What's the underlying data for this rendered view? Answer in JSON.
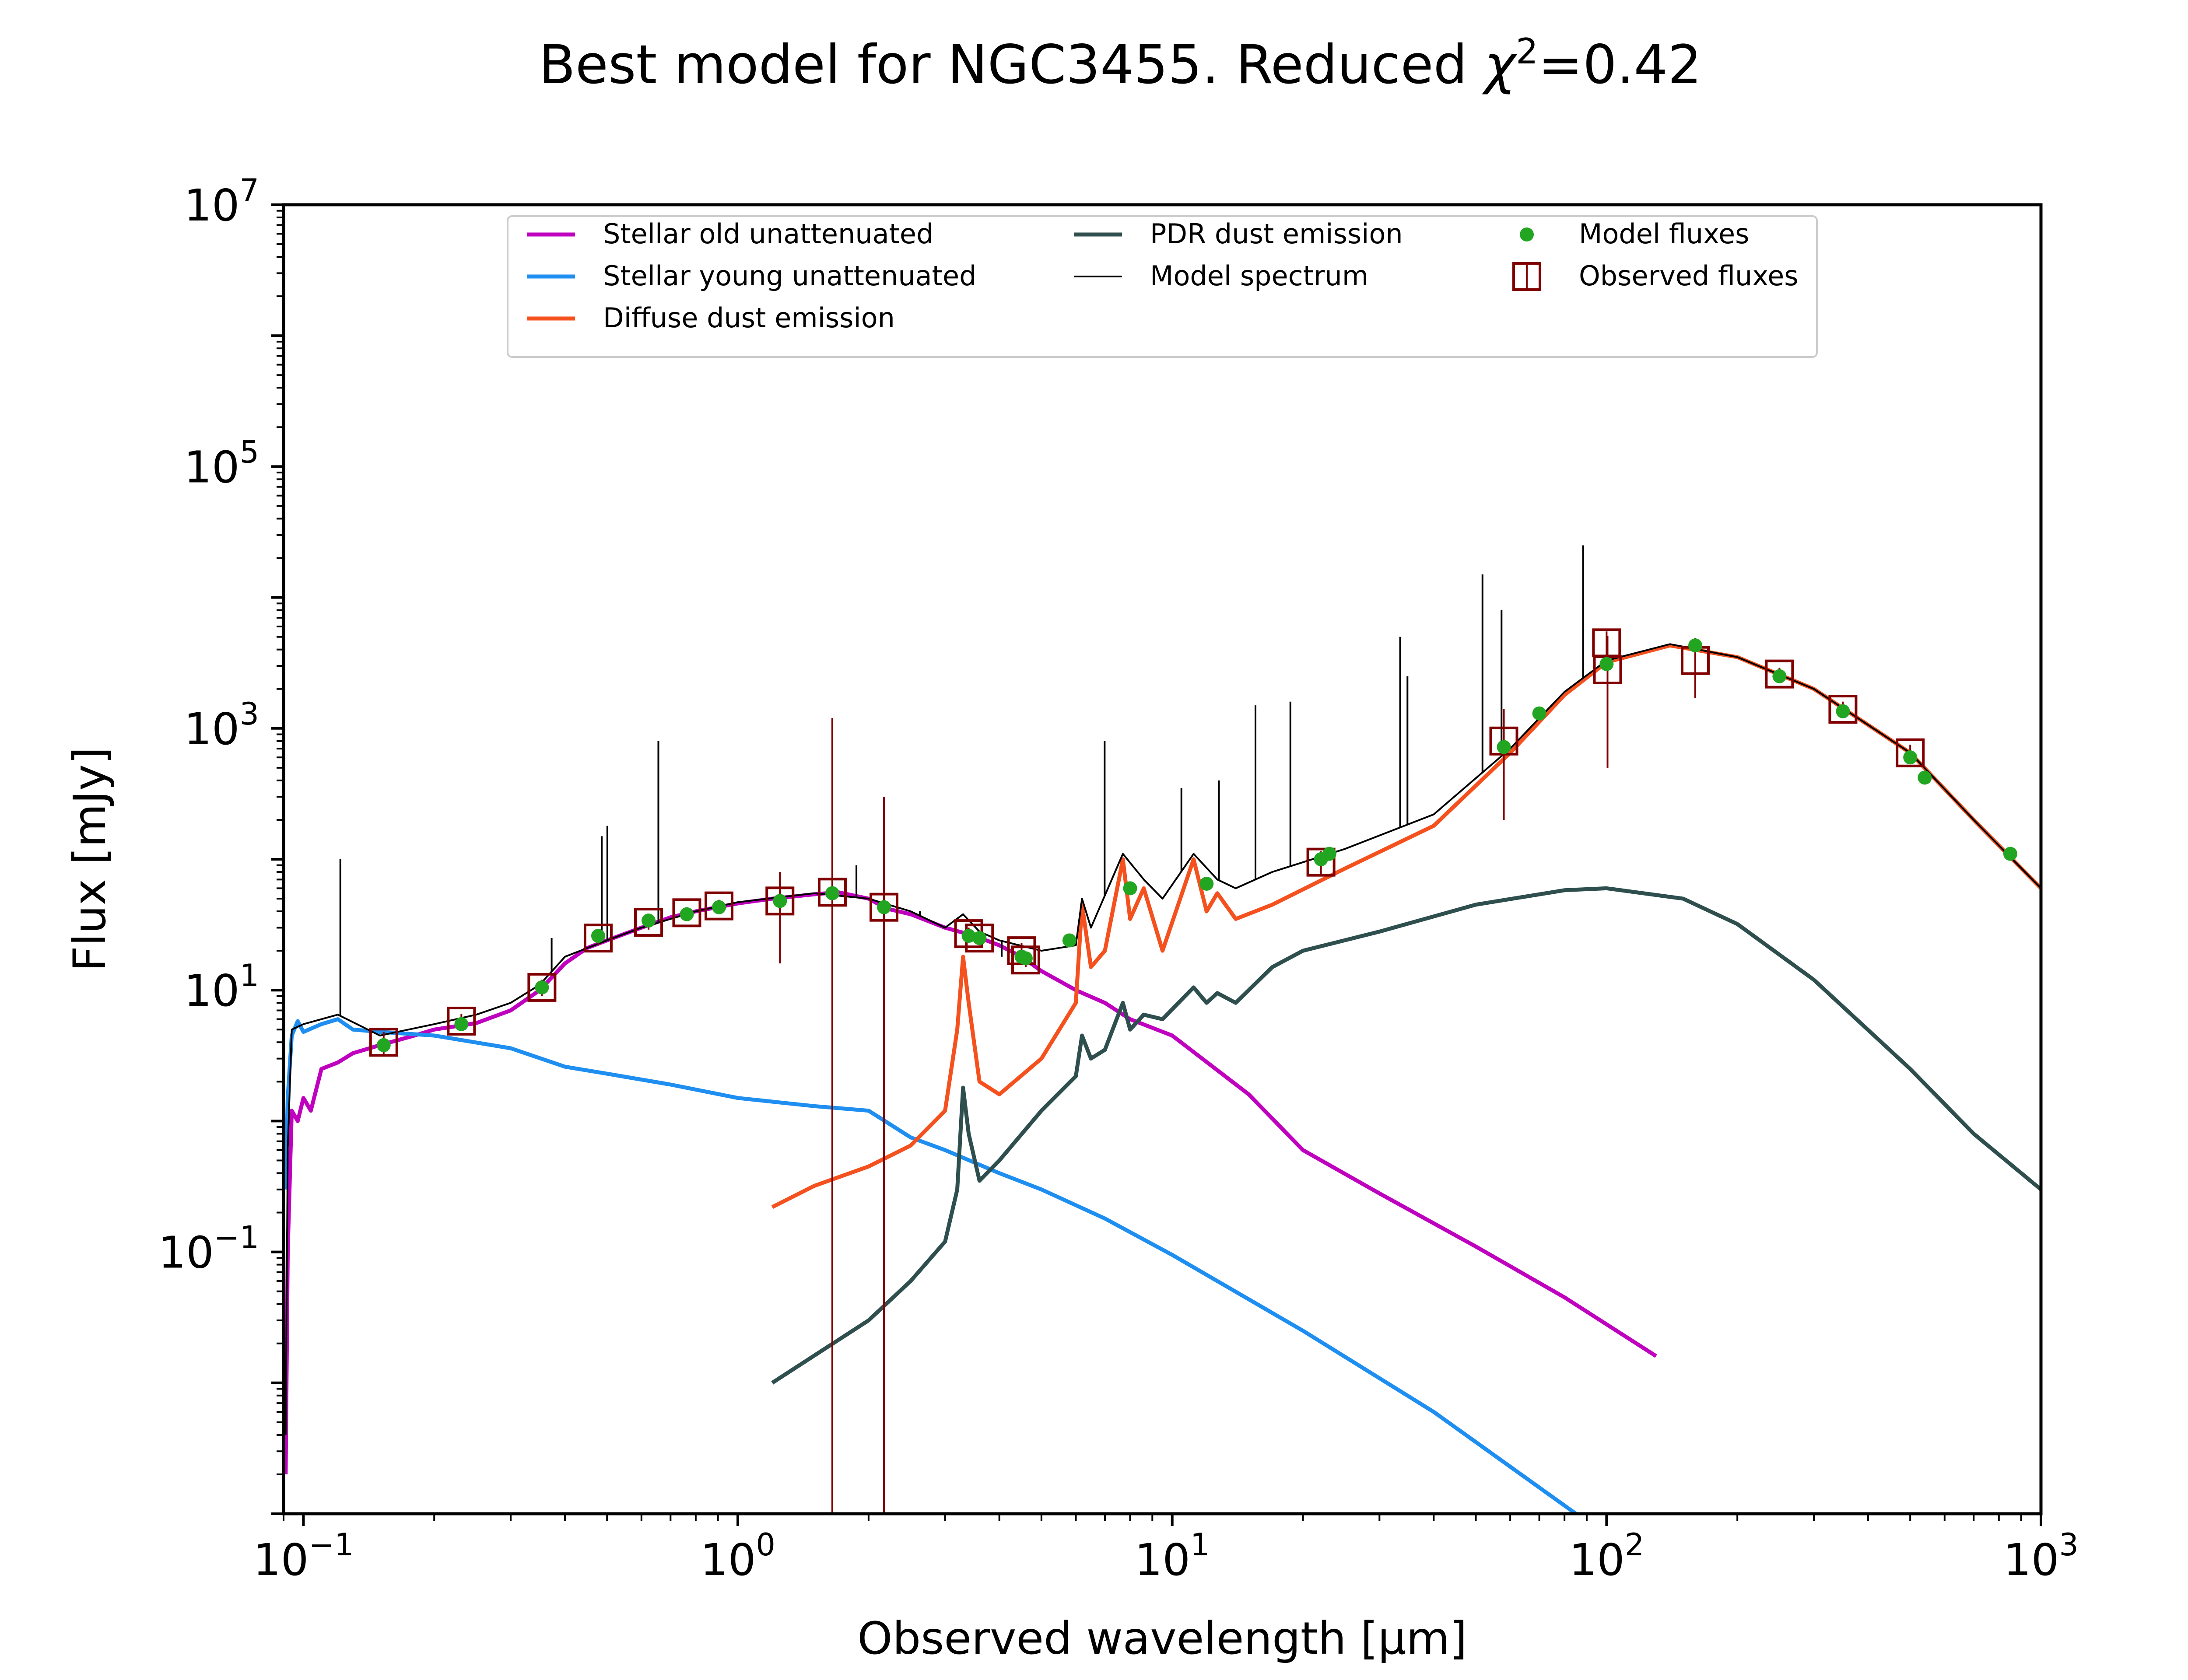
{
  "chart_data": {
    "type": "line",
    "title": "Best model for NGC3455. Reduced χ²=0.42",
    "title_parts": {
      "main": "Best model for NGC3455. Reduced ",
      "chi": "χ",
      "sup": "2",
      "value": "=0.42"
    },
    "xlabel": "Observed wavelength [μm]",
    "ylabel": "Flux [mJy]",
    "x_scale": "log",
    "y_scale": "log",
    "xlim": [
      0.09,
      1000
    ],
    "ylim": [
      0.001,
      10000000
    ],
    "x_ticks": [
      {
        "value": 0.1,
        "base": "10",
        "exp": "−1"
      },
      {
        "value": 1,
        "base": "10",
        "exp": "0"
      },
      {
        "value": 10,
        "base": "10",
        "exp": "1"
      },
      {
        "value": 100,
        "base": "10",
        "exp": "2"
      },
      {
        "value": 1000,
        "base": "10",
        "exp": "3"
      }
    ],
    "y_ticks": [
      {
        "value": 0.1,
        "base": "10",
        "exp": "−1"
      },
      {
        "value": 10,
        "base": "10",
        "exp": "1"
      },
      {
        "value": 1000,
        "base": "10",
        "exp": "3"
      },
      {
        "value": 100000,
        "base": "10",
        "exp": "5"
      },
      {
        "value": 10000000,
        "base": "10",
        "exp": "7"
      }
    ],
    "legend_position": "top",
    "grid": false,
    "series": [
      {
        "name": "Stellar old unattenuated",
        "color": "#bf00bf",
        "points": [
          [
            0.091,
            0.002
          ],
          [
            0.092,
            0.1
          ],
          [
            0.094,
            1.2
          ],
          [
            0.097,
            1.0
          ],
          [
            0.1,
            1.5
          ],
          [
            0.104,
            1.2
          ],
          [
            0.11,
            2.5
          ],
          [
            0.12,
            2.8
          ],
          [
            0.13,
            3.3
          ],
          [
            0.15,
            3.8
          ],
          [
            0.18,
            4.5
          ],
          [
            0.2,
            5.0
          ],
          [
            0.25,
            5.6
          ],
          [
            0.3,
            7.0
          ],
          [
            0.35,
            10.0
          ],
          [
            0.4,
            16
          ],
          [
            0.45,
            21
          ],
          [
            0.5,
            24
          ],
          [
            0.6,
            30
          ],
          [
            0.7,
            36
          ],
          [
            0.8,
            40
          ],
          [
            1.0,
            46
          ],
          [
            1.2,
            50
          ],
          [
            1.5,
            54
          ],
          [
            1.7,
            56
          ],
          [
            2.0,
            50
          ],
          [
            2.2,
            42
          ],
          [
            2.5,
            38
          ],
          [
            3.0,
            30
          ],
          [
            3.5,
            26
          ],
          [
            4.0,
            22
          ],
          [
            4.5,
            18
          ],
          [
            5.0,
            14
          ],
          [
            6.0,
            10
          ],
          [
            7.0,
            8
          ],
          [
            8.0,
            6
          ],
          [
            10.0,
            4.5
          ],
          [
            15.0,
            1.6
          ],
          [
            20.0,
            0.6
          ],
          [
            30.0,
            0.28
          ],
          [
            50.0,
            0.11
          ],
          [
            80.0,
            0.045
          ],
          [
            130.0,
            0.016
          ]
        ]
      },
      {
        "name": "Stellar young unattenuated",
        "color": "#1f8ef1",
        "points": [
          [
            0.091,
            0.3
          ],
          [
            0.092,
            1.5
          ],
          [
            0.094,
            4.5
          ],
          [
            0.097,
            5.8
          ],
          [
            0.1,
            4.8
          ],
          [
            0.11,
            5.5
          ],
          [
            0.12,
            6.0
          ],
          [
            0.13,
            5.0
          ],
          [
            0.15,
            4.8
          ],
          [
            0.2,
            4.5
          ],
          [
            0.3,
            3.6
          ],
          [
            0.4,
            2.6
          ],
          [
            0.5,
            2.3
          ],
          [
            0.7,
            1.9
          ],
          [
            1.0,
            1.5
          ],
          [
            1.5,
            1.3
          ],
          [
            2.0,
            1.2
          ],
          [
            2.5,
            0.75
          ],
          [
            3.0,
            0.6
          ],
          [
            4.0,
            0.4
          ],
          [
            5.0,
            0.3
          ],
          [
            7.0,
            0.18
          ],
          [
            10.0,
            0.095
          ],
          [
            20.0,
            0.025
          ],
          [
            40.0,
            0.006
          ],
          [
            85.0,
            0.001
          ]
        ]
      },
      {
        "name": "Diffuse dust emission",
        "color": "#f4511e",
        "points": [
          [
            1.2,
            0.22
          ],
          [
            1.5,
            0.32
          ],
          [
            2.0,
            0.45
          ],
          [
            2.5,
            0.65
          ],
          [
            3.0,
            1.2
          ],
          [
            3.2,
            5.0
          ],
          [
            3.3,
            18
          ],
          [
            3.4,
            8
          ],
          [
            3.6,
            2.0
          ],
          [
            4.0,
            1.6
          ],
          [
            5.0,
            3.0
          ],
          [
            6.0,
            8
          ],
          [
            6.2,
            45
          ],
          [
            6.5,
            15
          ],
          [
            7.0,
            20
          ],
          [
            7.7,
            100
          ],
          [
            8.0,
            35
          ],
          [
            8.6,
            60
          ],
          [
            9.5,
            20
          ],
          [
            11.2,
            100
          ],
          [
            12.0,
            40
          ],
          [
            12.7,
            55
          ],
          [
            14.0,
            35
          ],
          [
            17.0,
            45
          ],
          [
            25.0,
            85
          ],
          [
            40.0,
            180
          ],
          [
            60.0,
            650
          ],
          [
            80.0,
            1800
          ],
          [
            100.0,
            3200
          ],
          [
            140.0,
            4300
          ],
          [
            200.0,
            3500
          ],
          [
            300.0,
            2000
          ],
          [
            500.0,
            650
          ],
          [
            700.0,
            200
          ],
          [
            1000.0,
            60
          ]
        ]
      },
      {
        "name": "PDR dust emission",
        "color": "#2f4f4f",
        "points": [
          [
            1.2,
            0.01
          ],
          [
            2.0,
            0.03
          ],
          [
            2.5,
            0.06
          ],
          [
            3.0,
            0.12
          ],
          [
            3.2,
            0.3
          ],
          [
            3.3,
            1.8
          ],
          [
            3.4,
            0.8
          ],
          [
            3.6,
            0.35
          ],
          [
            4.0,
            0.5
          ],
          [
            5.0,
            1.2
          ],
          [
            6.0,
            2.2
          ],
          [
            6.2,
            4.5
          ],
          [
            6.5,
            3.0
          ],
          [
            7.0,
            3.5
          ],
          [
            7.7,
            8.0
          ],
          [
            8.0,
            5.0
          ],
          [
            8.6,
            6.5
          ],
          [
            9.5,
            6.0
          ],
          [
            11.2,
            10.5
          ],
          [
            12.0,
            8.0
          ],
          [
            12.7,
            9.5
          ],
          [
            14.0,
            8.0
          ],
          [
            17.0,
            15
          ],
          [
            20.0,
            20
          ],
          [
            30.0,
            28
          ],
          [
            50.0,
            45
          ],
          [
            80.0,
            58
          ],
          [
            100.0,
            60
          ],
          [
            150.0,
            50
          ],
          [
            200.0,
            32
          ],
          [
            300.0,
            12
          ],
          [
            500.0,
            2.5
          ],
          [
            700.0,
            0.8
          ],
          [
            1000.0,
            0.3
          ]
        ]
      },
      {
        "name": "Model spectrum",
        "color": "#000000",
        "points": [
          [
            0.091,
            0.004
          ],
          [
            0.092,
            0.6
          ],
          [
            0.094,
            5
          ],
          [
            0.1,
            5.5
          ],
          [
            0.11,
            6
          ],
          [
            0.12,
            6.5
          ],
          [
            0.15,
            4.5
          ],
          [
            0.2,
            5.5
          ],
          [
            0.25,
            6.5
          ],
          [
            0.3,
            8
          ],
          [
            0.35,
            11
          ],
          [
            0.4,
            18
          ],
          [
            0.5,
            24
          ],
          [
            0.6,
            30
          ],
          [
            0.8,
            40
          ],
          [
            1.0,
            47
          ],
          [
            1.5,
            55
          ],
          [
            2.0,
            50
          ],
          [
            2.5,
            40
          ],
          [
            3.0,
            30
          ],
          [
            3.3,
            38
          ],
          [
            3.6,
            28
          ],
          [
            4.0,
            24
          ],
          [
            5.0,
            20
          ],
          [
            6.0,
            22
          ],
          [
            6.2,
            50
          ],
          [
            6.5,
            30
          ],
          [
            7.7,
            110
          ],
          [
            8.6,
            70
          ],
          [
            9.5,
            50
          ],
          [
            11.2,
            110
          ],
          [
            12.7,
            70
          ],
          [
            14.0,
            60
          ],
          [
            17.0,
            80
          ],
          [
            25.0,
            120
          ],
          [
            40.0,
            220
          ],
          [
            60.0,
            700
          ],
          [
            80.0,
            1900
          ],
          [
            100.0,
            3300
          ],
          [
            140.0,
            4400
          ],
          [
            200.0,
            3500
          ],
          [
            300.0,
            2000
          ],
          [
            500.0,
            650
          ],
          [
            700.0,
            200
          ],
          [
            1000.0,
            60
          ]
        ]
      }
    ],
    "emission_lines": [
      [
        0.1216,
        100
      ],
      [
        0.3727,
        25
      ],
      [
        0.4861,
        150
      ],
      [
        0.5007,
        180
      ],
      [
        0.6563,
        800
      ],
      [
        1.875,
        90
      ],
      [
        2.625,
        40
      ],
      [
        4.05,
        18
      ],
      [
        6.99,
        800
      ],
      [
        10.5,
        350
      ],
      [
        12.81,
        400
      ],
      [
        15.55,
        1500
      ],
      [
        18.71,
        1600
      ],
      [
        33.48,
        5000
      ],
      [
        34.8,
        2500
      ],
      [
        51.8,
        15000
      ],
      [
        57.3,
        8000
      ],
      [
        88.3,
        25000
      ]
    ],
    "model_fluxes": {
      "name": "Model fluxes",
      "color": "#22a622",
      "points": [
        [
          0.153,
          3.8
        ],
        [
          0.231,
          5.5
        ],
        [
          0.354,
          10.5
        ],
        [
          0.477,
          26
        ],
        [
          0.623,
          34
        ],
        [
          0.763,
          38
        ],
        [
          0.905,
          43
        ],
        [
          1.25,
          48
        ],
        [
          1.65,
          55
        ],
        [
          2.17,
          43
        ],
        [
          3.4,
          26
        ],
        [
          3.6,
          25
        ],
        [
          4.5,
          18
        ],
        [
          4.6,
          17.5
        ],
        [
          5.8,
          24
        ],
        [
          8.0,
          60
        ],
        [
          12.0,
          65
        ],
        [
          22.0,
          100
        ],
        [
          23.0,
          110
        ],
        [
          58.0,
          720
        ],
        [
          70.0,
          1300
        ],
        [
          100.0,
          3100
        ],
        [
          160.0,
          4300
        ],
        [
          250.0,
          2500
        ],
        [
          350.0,
          1350
        ],
        [
          500.0,
          600
        ],
        [
          540.0,
          420
        ],
        [
          850.0,
          110
        ]
      ]
    },
    "observed_fluxes": {
      "name": "Observed fluxes",
      "color": "#800000",
      "points": [
        {
          "x": 0.153,
          "y": 4.0,
          "lo": 3.2,
          "hi": 4.8
        },
        {
          "x": 0.231,
          "y": 5.8,
          "lo": 5.0,
          "hi": 6.6
        },
        {
          "x": 0.354,
          "y": 10.5,
          "lo": 9.0,
          "hi": 12.0
        },
        {
          "x": 0.477,
          "y": 25,
          "lo": 22,
          "hi": 28
        },
        {
          "x": 0.623,
          "y": 33,
          "lo": 29,
          "hi": 37
        },
        {
          "x": 0.763,
          "y": 39,
          "lo": 35,
          "hi": 43
        },
        {
          "x": 0.905,
          "y": 44,
          "lo": 39,
          "hi": 49
        },
        {
          "x": 1.25,
          "y": 48,
          "lo": 16,
          "hi": 80
        },
        {
          "x": 1.65,
          "y": 56,
          "lo": 0.001,
          "hi": 1200
        },
        {
          "x": 2.17,
          "y": 43,
          "lo": 0.001,
          "hi": 300
        },
        {
          "x": 3.4,
          "y": 27,
          "lo": 24,
          "hi": 30
        },
        {
          "x": 3.6,
          "y": 25,
          "lo": 22,
          "hi": 28
        },
        {
          "x": 4.5,
          "y": 20,
          "lo": 17,
          "hi": 23
        },
        {
          "x": 4.6,
          "y": 17,
          "lo": 15,
          "hi": 19
        },
        {
          "x": 22.0,
          "y": 95,
          "lo": 75,
          "hi": 115
        },
        {
          "x": 58.0,
          "y": 800,
          "lo": 200,
          "hi": 1400
        },
        {
          "x": 100.0,
          "y": 4500,
          "lo": 3500,
          "hi": 5500
        },
        {
          "x": 100.5,
          "y": 2800,
          "lo": 500,
          "hi": 5100
        },
        {
          "x": 160.0,
          "y": 3300,
          "lo": 1700,
          "hi": 4900
        },
        {
          "x": 250.0,
          "y": 2600,
          "lo": 2300,
          "hi": 2900
        },
        {
          "x": 350.0,
          "y": 1400,
          "lo": 1200,
          "hi": 1600
        },
        {
          "x": 500.0,
          "y": 650,
          "lo": 550,
          "hi": 750
        }
      ]
    }
  }
}
